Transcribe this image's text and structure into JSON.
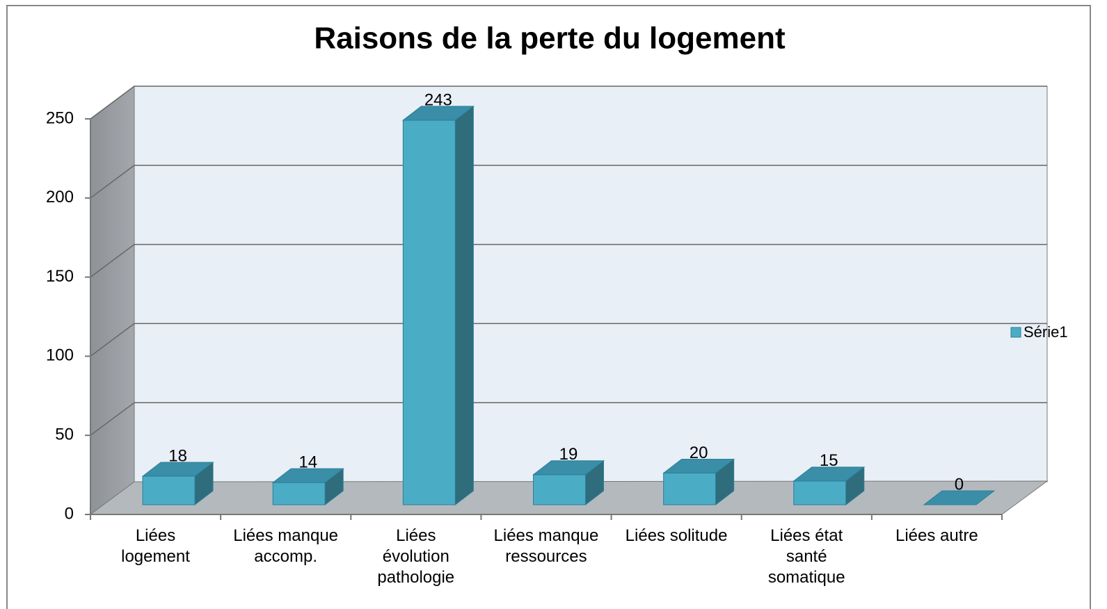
{
  "chart_data": {
    "type": "bar3d",
    "title": "Raisons de la perte  du logement",
    "categories": [
      "Liées\nlogement",
      "Liées manque\naccomp.",
      "Liées\névolution\npathologie",
      "Liées manque\nressources",
      "Liées solitude",
      "Liées état\nsanté\nsomatique",
      "Liées autre"
    ],
    "series": [
      {
        "name": "Série1",
        "color": "#4bacc6",
        "values": [
          18,
          14,
          243,
          19,
          20,
          15,
          0
        ]
      }
    ],
    "ylim": [
      0,
      250
    ],
    "yticks": [
      0,
      50,
      100,
      150,
      200,
      250
    ],
    "grid": true,
    "legend": "right"
  }
}
